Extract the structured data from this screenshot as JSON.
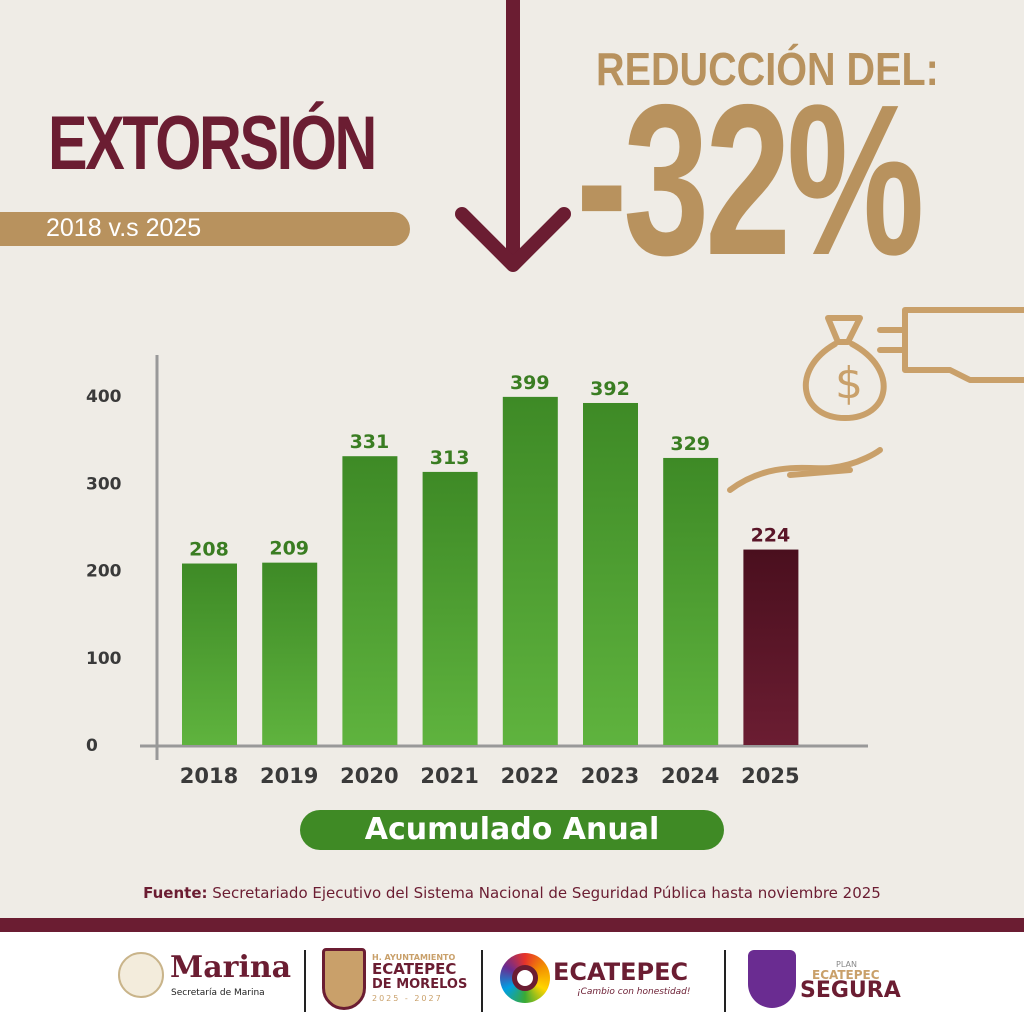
{
  "header": {
    "title": "EXTORSIÓN",
    "subtitle": "2018 v.s 2025",
    "reduction_label": "REDUCCIÓN DEL:",
    "reduction_value": "-32%"
  },
  "chart_data": {
    "type": "bar",
    "categories": [
      "2018",
      "2019",
      "2020",
      "2021",
      "2022",
      "2023",
      "2024",
      "2025"
    ],
    "values": [
      208,
      209,
      331,
      313,
      399,
      392,
      329,
      224
    ],
    "yticks": [
      "0",
      "100",
      "200",
      "300",
      "400"
    ],
    "ylim": [
      0,
      400
    ],
    "xlabel": "Acumulado Anual",
    "colors": {
      "default": "#4e9a2f",
      "highlight": "#5a1528",
      "label_green": "#3a7d22",
      "label_maroon": "#5a1528"
    }
  },
  "source": {
    "label": "Fuente:",
    "text": " Secretariado Ejecutivo del Sistema Nacional de Seguridad Pública hasta noviembre 2025"
  },
  "footer": {
    "marina": {
      "name": "Marina",
      "sub": "Secretaría de Marina"
    },
    "ayuntamiento": {
      "line1": "H. AYUNTAMIENTO",
      "line2": "ECATEPEC",
      "line3": "DE MORELOS",
      "line4": "2025 - 2027"
    },
    "ecatepec": {
      "name": "ECATEPEC",
      "slogan": "¡Cambio con honestidad!"
    },
    "plan": {
      "line1": "PLAN",
      "line2": "ECATEPEC",
      "line3": "SEGURA"
    }
  }
}
